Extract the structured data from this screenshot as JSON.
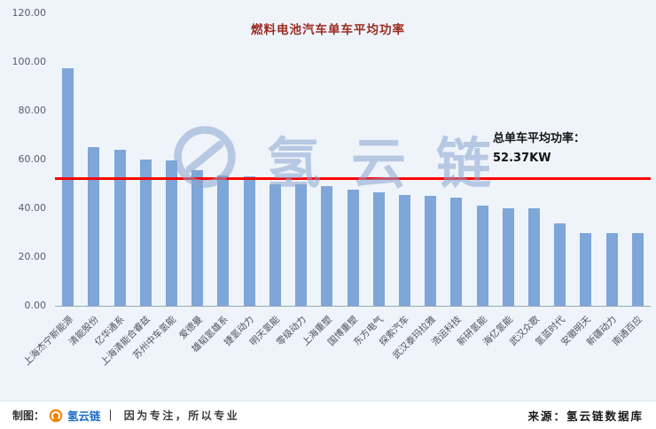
{
  "title": "燃料电池汽车单车平均功率",
  "annotation": {
    "line1": "总单车平均功率：",
    "line2": "52.37KW"
  },
  "watermark": {
    "text": "氢云链",
    "logo": "hydrogen-cloud-chain-ring"
  },
  "footer": {
    "left_prefix": "制图：",
    "brand": "氢云链",
    "left_suffix": "｜ 因为专注，所以专业",
    "right": "来源：氢云链数据库"
  },
  "colors": {
    "background": "#eff4fa",
    "bar": "#7ea6d8",
    "reference_line": "#ff0000",
    "title": "#9c2a21",
    "brand_blue": "#1c6fc9",
    "logo_orange": "#f08300"
  },
  "chart_data": {
    "type": "bar",
    "title": "燃料电池汽车单车平均功率",
    "xlabel": "",
    "ylabel": "",
    "ylim": [
      0,
      120
    ],
    "yticks": [
      "0.00",
      "20.00",
      "40.00",
      "60.00",
      "80.00",
      "100.00",
      "120.00"
    ],
    "grid": false,
    "legend": false,
    "categories": [
      "上海杰宁新能源",
      "清能股份",
      "亿华通系",
      "上海清能合睿兹",
      "苏州中车氢能",
      "爱德曼",
      "雄韬氢雄系",
      "捷氢动力",
      "明天氢能",
      "零级动力",
      "上海重塑",
      "国博重塑",
      "东方电气",
      "探索汽车",
      "武汉泰玛拉雅",
      "浩运科技",
      "新研氢能",
      "海亿氢能",
      "武汉众歌",
      "氢蓝时代",
      "安徽明天",
      "新疆动力",
      "南通百应"
    ],
    "values": [
      97.5,
      65,
      64,
      60,
      59.5,
      55.5,
      53.5,
      53,
      50,
      50,
      49,
      47.5,
      46.5,
      45.5,
      45,
      44.5,
      41,
      40,
      40,
      34,
      30,
      30,
      30
    ],
    "reference_line": {
      "value": 52.37,
      "label": "总单车平均功率：52.37KW",
      "color": "#ff0000"
    }
  }
}
